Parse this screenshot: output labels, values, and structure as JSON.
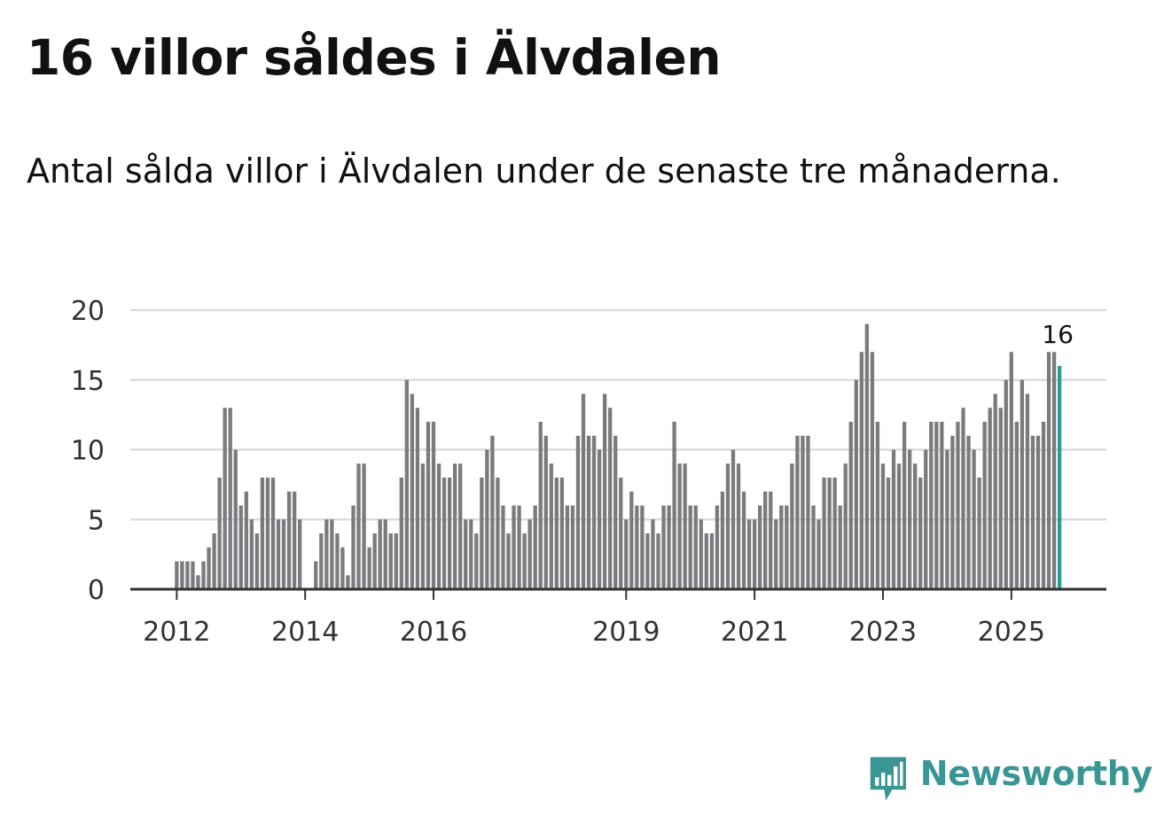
{
  "title": "16 villor såldes i Älvdalen",
  "subtitle": "Antal sålda villor i Älvdalen under de senaste tre månaderna.",
  "brand": {
    "name": "Newsworthy",
    "logo_icon": "bar-chart-speech-bubble-icon"
  },
  "colors": {
    "bar": "#7b7a7e",
    "highlight": "#2a9d96",
    "grid": "#dcdcdc",
    "axis": "#333333",
    "brand": "#3a9595"
  },
  "chart_data": {
    "type": "bar",
    "title": "16 villor såldes i Älvdalen",
    "xlabel": "",
    "ylabel": "",
    "ylim": [
      0,
      20
    ],
    "yticks": [
      0,
      5,
      10,
      15,
      20
    ],
    "grid": true,
    "x_start": "2012-01",
    "xticks": [
      {
        "label": "2012",
        "index": 0
      },
      {
        "label": "2014",
        "index": 24
      },
      {
        "label": "2016",
        "index": 48
      },
      {
        "label": "2019",
        "index": 84
      },
      {
        "label": "2021",
        "index": 108
      },
      {
        "label": "2023",
        "index": 132
      },
      {
        "label": "2025",
        "index": 156
      }
    ],
    "values": [
      2,
      2,
      2,
      2,
      1,
      2,
      3,
      4,
      8,
      13,
      13,
      10,
      6,
      7,
      5,
      4,
      8,
      8,
      8,
      5,
      5,
      7,
      7,
      5,
      0,
      0,
      2,
      4,
      5,
      5,
      4,
      3,
      1,
      6,
      9,
      9,
      3,
      4,
      5,
      5,
      4,
      4,
      8,
      15,
      14,
      13,
      9,
      12,
      12,
      9,
      8,
      8,
      9,
      9,
      5,
      5,
      4,
      8,
      10,
      11,
      8,
      6,
      4,
      6,
      6,
      4,
      5,
      6,
      12,
      11,
      9,
      8,
      8,
      6,
      6,
      11,
      14,
      11,
      11,
      10,
      14,
      13,
      11,
      8,
      5,
      7,
      6,
      6,
      4,
      5,
      4,
      6,
      6,
      12,
      9,
      9,
      6,
      6,
      5,
      4,
      4,
      6,
      7,
      9,
      10,
      9,
      7,
      5,
      5,
      6,
      7,
      7,
      5,
      6,
      6,
      9,
      11,
      11,
      11,
      6,
      5,
      8,
      8,
      8,
      6,
      9,
      12,
      15,
      17,
      19,
      17,
      12,
      9,
      8,
      10,
      9,
      12,
      10,
      9,
      8,
      10,
      12,
      12,
      12,
      10,
      11,
      12,
      13,
      11,
      10,
      8,
      12,
      13,
      14,
      13,
      15,
      17,
      12,
      15,
      14,
      11,
      11,
      12,
      17,
      17,
      16
    ],
    "highlight_label": "16"
  }
}
